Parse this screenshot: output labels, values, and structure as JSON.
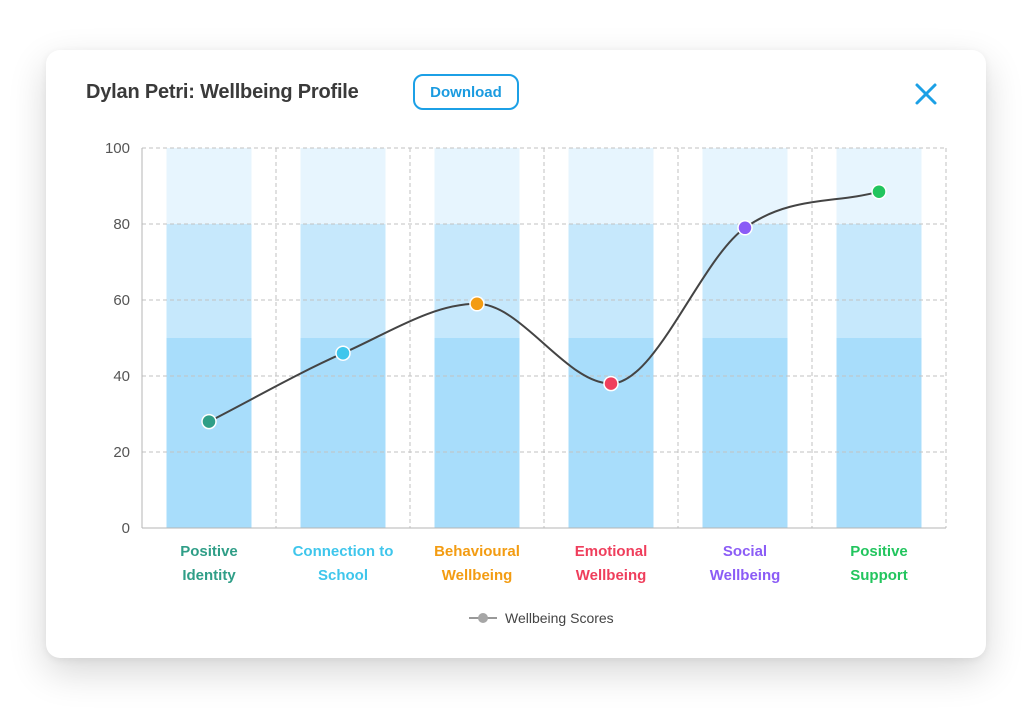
{
  "dialog": {
    "title": "Dylan Petri: Wellbeing Profile",
    "download_label": "Download",
    "close_icon": "close-icon"
  },
  "colors": {
    "accent": "#1ca0e6",
    "band_low": "#a8ddfb",
    "band_mid": "#c6e8fc",
    "band_high": "#e7f5fe",
    "line": "#444444"
  },
  "chart_data": {
    "type": "line",
    "categories": [
      [
        "Positive",
        "Identity"
      ],
      [
        "Connection to",
        "School"
      ],
      [
        "Behavioural",
        "Wellbeing"
      ],
      [
        "Emotional",
        "Wellbeing"
      ],
      [
        "Social",
        "Wellbeing"
      ],
      [
        "Positive",
        "Support"
      ]
    ],
    "category_colors": [
      "#2f9e87",
      "#3fc6ec",
      "#f39c12",
      "#ef3e5c",
      "#8b5cf6",
      "#22c55e"
    ],
    "series": [
      {
        "name": "Wellbeing Scores",
        "values": [
          28,
          46,
          59,
          38,
          79,
          88.5
        ]
      }
    ],
    "bands": [
      50,
      80,
      100
    ],
    "yticks": [
      0,
      20,
      40,
      60,
      80,
      100
    ],
    "ylim": [
      0,
      100
    ],
    "grid": true,
    "legend": "bottom-center"
  }
}
